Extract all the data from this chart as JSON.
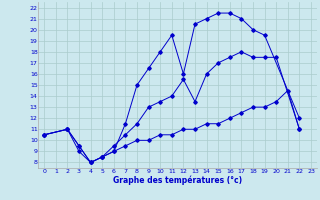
{
  "xlabel": "Graphe des températures (°c)",
  "background_color": "#cce8ee",
  "grid_color": "#aacccc",
  "line_color": "#0000cc",
  "x_ticks": [
    0,
    1,
    2,
    3,
    4,
    5,
    6,
    7,
    8,
    9,
    10,
    11,
    12,
    13,
    14,
    15,
    16,
    17,
    18,
    19,
    20,
    21,
    22,
    23
  ],
  "y_ticks": [
    8,
    9,
    10,
    11,
    12,
    13,
    14,
    15,
    16,
    17,
    18,
    19,
    20,
    21,
    22
  ],
  "xlim": [
    -0.5,
    23.5
  ],
  "ylim": [
    7.5,
    22.5
  ],
  "line1_x": [
    0,
    2,
    3,
    4,
    5,
    6,
    7,
    8,
    9,
    10,
    11,
    12,
    13,
    14,
    15,
    16,
    17,
    18,
    19,
    22
  ],
  "line1_y": [
    10.5,
    11.0,
    9.0,
    8.0,
    8.5,
    9.0,
    11.5,
    15.0,
    16.5,
    18.0,
    19.5,
    16.0,
    20.5,
    21.0,
    21.5,
    21.5,
    21.0,
    20.0,
    19.5,
    12.0
  ],
  "line2_x": [
    0,
    2,
    3,
    4,
    5,
    6,
    7,
    8,
    9,
    10,
    11,
    12,
    13,
    14,
    15,
    16,
    17,
    18,
    19,
    20,
    22
  ],
  "line2_y": [
    10.5,
    11.0,
    9.5,
    8.0,
    8.5,
    9.5,
    10.5,
    11.5,
    13.0,
    13.5,
    14.0,
    15.5,
    13.5,
    16.0,
    17.0,
    17.5,
    18.0,
    17.5,
    17.5,
    17.5,
    11.0
  ],
  "line3_x": [
    0,
    2,
    3,
    4,
    5,
    6,
    7,
    8,
    9,
    10,
    11,
    12,
    13,
    14,
    15,
    16,
    17,
    18,
    19,
    20,
    21,
    22
  ],
  "line3_y": [
    10.5,
    11.0,
    9.5,
    8.0,
    8.5,
    9.0,
    9.5,
    10.0,
    10.0,
    10.5,
    10.5,
    11.0,
    11.0,
    11.5,
    11.5,
    12.0,
    12.5,
    13.0,
    13.0,
    13.5,
    14.5,
    11.0
  ]
}
